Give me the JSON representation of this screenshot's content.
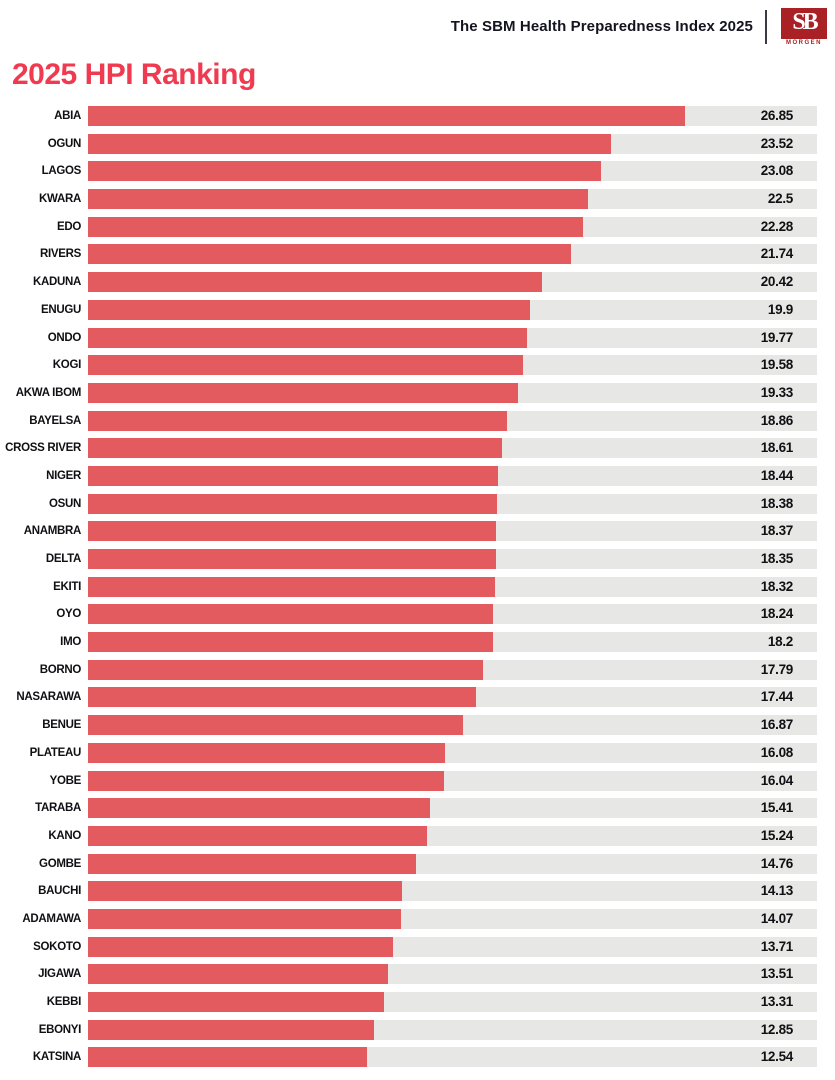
{
  "header": {
    "title": "The SBM Health Preparedness Index 2025",
    "logo": {
      "sb_text": "SB",
      "sub_text": "MORGEN"
    }
  },
  "page_title": "2025 HPI Ranking",
  "colors": {
    "bar": "#e45b5f",
    "track": "#e7e7e5",
    "title": "#ef3a50",
    "logo": "#a92025",
    "text": "#141420"
  },
  "chart_data": {
    "type": "bar",
    "orientation": "horizontal",
    "title": "2025 HPI Ranking",
    "xlabel": "",
    "ylabel": "",
    "xlim": [
      0,
      32.8
    ],
    "grid": false,
    "legend": false,
    "categories": [
      "ABIA",
      "OGUN",
      "LAGOS",
      "KWARA",
      "EDO",
      "RIVERS",
      "KADUNA",
      "ENUGU",
      "ONDO",
      "KOGI",
      "AKWA IBOM",
      "BAYELSA",
      "CROSS RIVER",
      "NIGER",
      "OSUN",
      "ANAMBRA",
      "DELTA",
      "EKITI",
      "OYO",
      "IMO",
      "BORNO",
      "NASARAWA",
      "BENUE",
      "PLATEAU",
      "YOBE",
      "TARABA",
      "KANO",
      "GOMBE",
      "BAUCHI",
      "ADAMAWA",
      "SOKOTO",
      "JIGAWA",
      "KEBBI",
      "EBONYI",
      "KATSINA"
    ],
    "values": [
      26.85,
      23.52,
      23.08,
      22.5,
      22.28,
      21.74,
      20.42,
      19.9,
      19.77,
      19.58,
      19.33,
      18.86,
      18.61,
      18.44,
      18.38,
      18.37,
      18.35,
      18.32,
      18.24,
      18.2,
      17.79,
      17.44,
      16.87,
      16.08,
      16.04,
      15.41,
      15.24,
      14.76,
      14.13,
      14.07,
      13.71,
      13.51,
      13.31,
      12.85,
      12.54
    ],
    "value_labels": [
      "26.85",
      "23.52",
      "23.08",
      "22.5",
      "22.28",
      "21.74",
      "20.42",
      "19.9",
      "19.77",
      "19.58",
      "19.33",
      "18.86",
      "18.61",
      "18.44",
      "18.38",
      "18.37",
      "18.35",
      "18.32",
      "18.24",
      "18.2",
      "17.79",
      "17.44",
      "16.87",
      "16.08",
      "16.04",
      "15.41",
      "15.24",
      "14.76",
      "14.13",
      "14.07",
      "13.71",
      "13.51",
      "13.31",
      "12.85",
      "12.54"
    ]
  }
}
